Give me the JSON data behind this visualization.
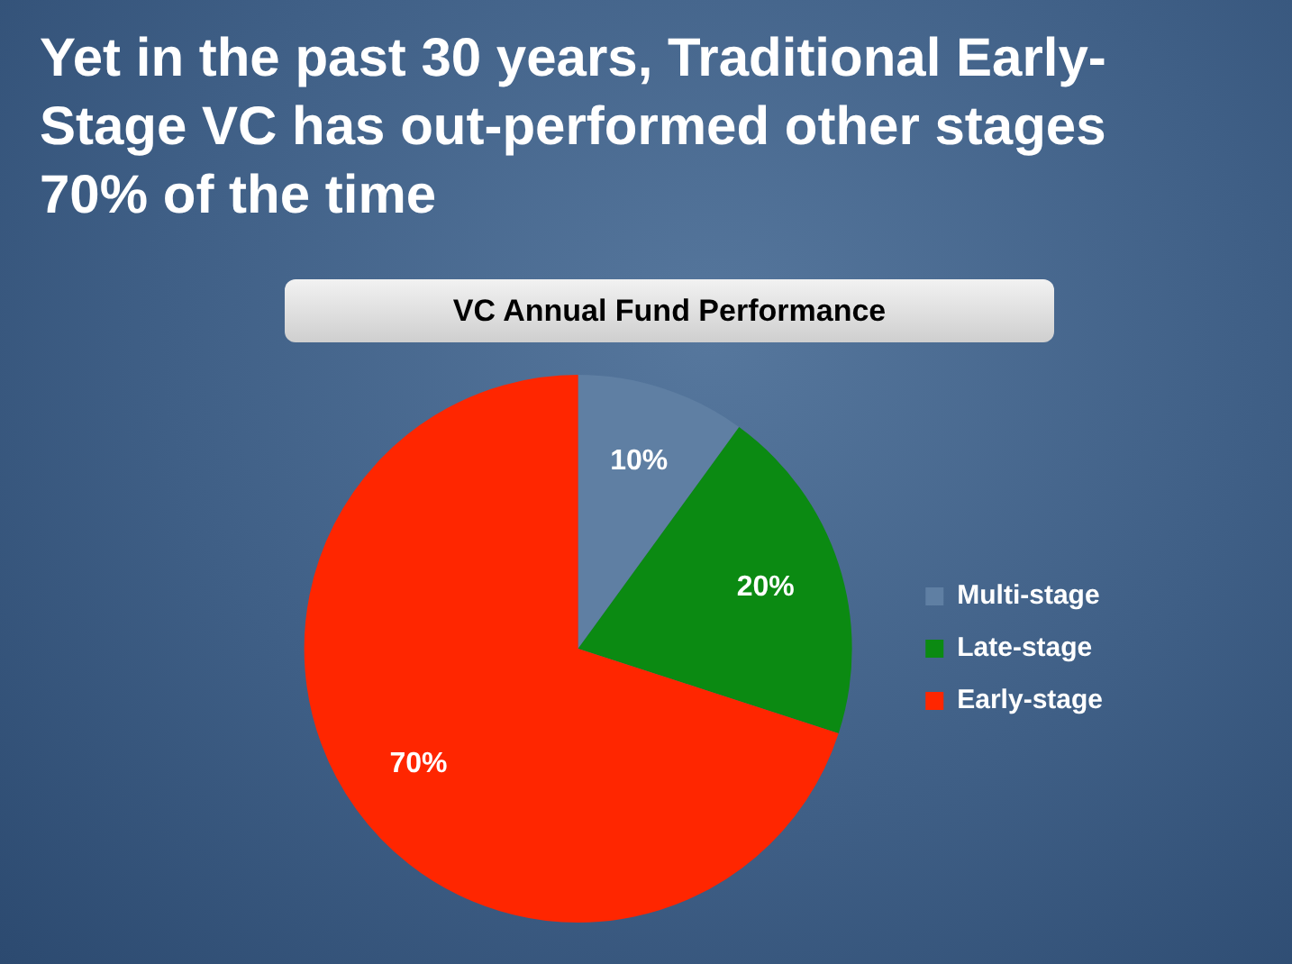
{
  "chart_data": {
    "type": "pie",
    "title": "Yet in the past 30 years, Traditional Early-Stage VC has out-performed other stages 70% of the time",
    "subtitle": "VC Annual Fund Performance",
    "categories": [
      "Multi-stage",
      "Late-stage",
      "Early-stage"
    ],
    "values": [
      10,
      20,
      70
    ],
    "colors": [
      "#5f7fa3",
      "#0b8a12",
      "#ff2600"
    ],
    "value_labels": [
      "10%",
      "20%",
      "70%"
    ],
    "legend": "right"
  }
}
